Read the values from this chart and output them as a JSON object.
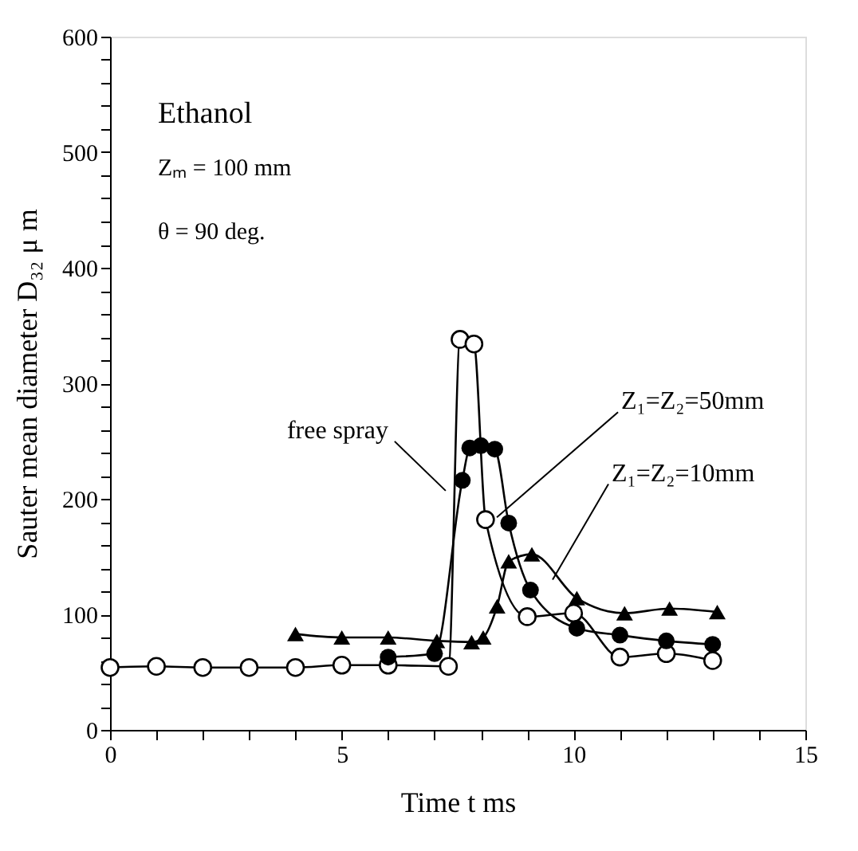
{
  "chart_data": {
    "type": "line",
    "xlabel": "Time  t    ms",
    "ylabel": "Sauter mean diameter  D₃₂   μ m",
    "xlim": [
      0,
      15
    ],
    "ylim": [
      0,
      600
    ],
    "xticks": [
      0,
      {
        "value": 1,
        "label": null
      },
      {
        "value": 2,
        "label": null
      },
      {
        "value": 3,
        "label": null
      },
      {
        "value": 4,
        "label": null
      },
      5,
      {
        "value": 6,
        "label": null
      },
      {
        "value": 7,
        "label": null
      },
      {
        "value": 8,
        "label": null
      },
      {
        "value": 9,
        "label": null
      },
      10,
      {
        "value": 11,
        "label": null
      },
      {
        "value": 12,
        "label": null
      },
      {
        "value": 13,
        "label": null
      },
      {
        "value": 14,
        "label": null
      },
      15
    ],
    "yticks": [
      0,
      {
        "value": 20,
        "label": null
      },
      {
        "value": 40,
        "label": null
      },
      {
        "value": 60,
        "label": null
      },
      {
        "value": 80,
        "label": null
      },
      100,
      {
        "value": 120,
        "label": null
      },
      {
        "value": 140,
        "label": null
      },
      {
        "value": 160,
        "label": null
      },
      {
        "value": 180,
        "label": null
      },
      200,
      {
        "value": 220,
        "label": null
      },
      {
        "value": 240,
        "label": null
      },
      {
        "value": 260,
        "label": null
      },
      {
        "value": 280,
        "label": null
      },
      300,
      {
        "value": 320,
        "label": null
      },
      {
        "value": 340,
        "label": null
      },
      {
        "value": 360,
        "label": null
      },
      {
        "value": 380,
        "label": null
      },
      400,
      {
        "value": 420,
        "label": null
      },
      {
        "value": 440,
        "label": null
      },
      {
        "value": 460,
        "label": null
      },
      {
        "value": 480,
        "label": null
      },
      500,
      {
        "value": 520,
        "label": null
      },
      {
        "value": 540,
        "label": null
      },
      {
        "value": 560,
        "label": null
      },
      {
        "value": 580,
        "label": null
      },
      600
    ],
    "grid": false,
    "legend": false,
    "line_style": "solid",
    "annotations": [
      "Ethanol",
      "Zₘ = 100 mm",
      "θ  = 90 deg."
    ],
    "series": [
      {
        "name": "free spray",
        "color": "#000000",
        "marker": "circle",
        "x": [
          0,
          1,
          2,
          3,
          4,
          5,
          6,
          7.3,
          7.55,
          7.85,
          8.1,
          9,
          10,
          11,
          12,
          13
        ],
        "values": [
          54,
          55,
          54,
          54,
          54,
          56,
          56,
          55,
          338,
          334,
          182,
          98,
          101,
          63,
          66,
          60
        ]
      },
      {
        "name": "Z₁=Z₂=50mm",
        "color": "#000000",
        "marker": "circle",
        "x": [
          6,
          7,
          7.6,
          7.76,
          8,
          8.3,
          8.6,
          9.07,
          10.07,
          11,
          12,
          13
        ],
        "values": [
          63,
          66,
          216,
          244,
          246,
          243,
          179,
          121,
          88,
          82,
          77,
          74
        ]
      },
      {
        "name": "Z₁=Z₂=10mm",
        "color": "#000000",
        "marker": "triangle",
        "x": [
          4,
          5,
          6,
          7.05,
          7.8,
          8.05,
          8.35,
          8.6,
          9.1,
          10.07,
          11.1,
          12.07,
          13.1
        ],
        "values": [
          83,
          80,
          80,
          77,
          76,
          80,
          107,
          146,
          152,
          114,
          101,
          105,
          102
        ]
      }
    ]
  }
}
